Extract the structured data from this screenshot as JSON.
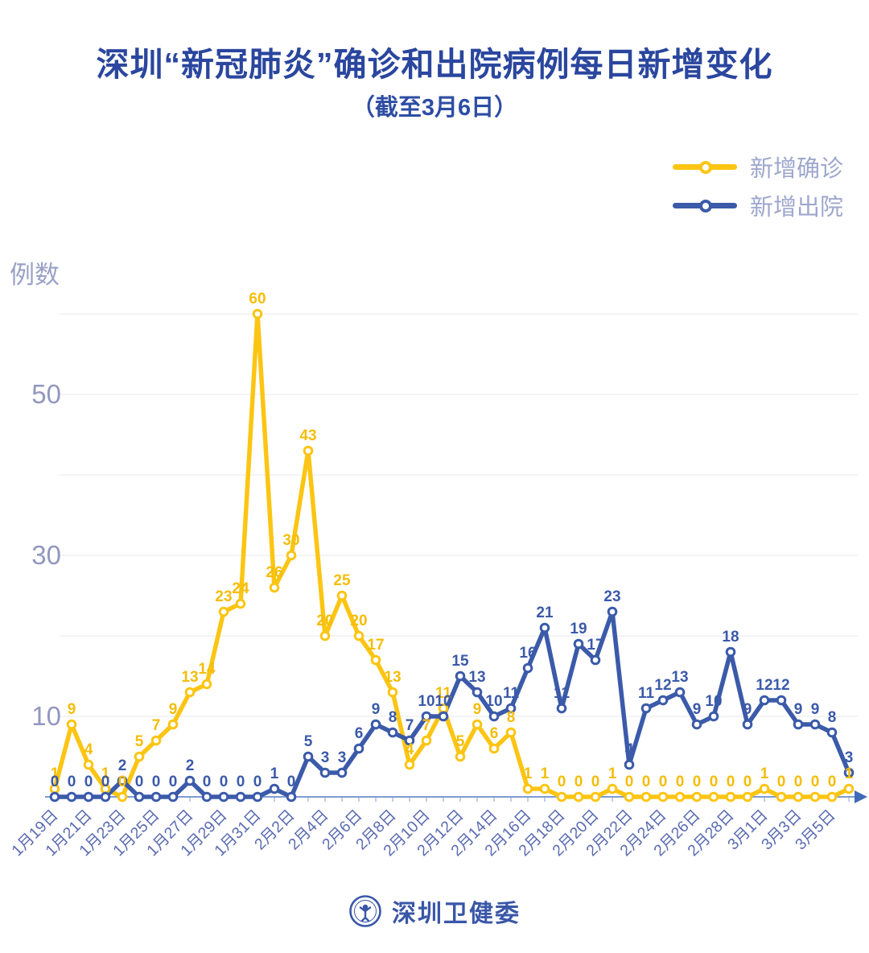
{
  "title": "深圳“新冠肺炎”确诊和出院病例每日新增变化",
  "subtitle": "（截至3月6日）",
  "legend": [
    {
      "label": "新增确诊",
      "color": "#fcc513"
    },
    {
      "label": "新增出院",
      "color": "#3b5aa9"
    }
  ],
  "y_axis": {
    "title": "例数",
    "tick_labels": [
      10,
      30,
      50
    ],
    "max": 60,
    "grid_step": 10
  },
  "footer": {
    "brand": "深圳卫健委",
    "logo": "shenzhen-health-commission-emblem"
  },
  "chart_data": {
    "type": "line",
    "x": [
      "1月19日",
      "1月20日",
      "1月21日",
      "1月22日",
      "1月23日",
      "1月24日",
      "1月25日",
      "1月26日",
      "1月27日",
      "1月28日",
      "1月29日",
      "1月30日",
      "1月31日",
      "2月1日",
      "2月2日",
      "2月3日",
      "2月4日",
      "2月5日",
      "2月6日",
      "2月7日",
      "2月8日",
      "2月9日",
      "2月10日",
      "2月11日",
      "2月12日",
      "2月13日",
      "2月14日",
      "2月15日",
      "2月16日",
      "2月17日",
      "2月18日",
      "2月19日",
      "2月20日",
      "2月21日",
      "2月22日",
      "2月23日",
      "2月24日",
      "2月25日",
      "2月26日",
      "2月27日",
      "2月28日",
      "2月29日",
      "3月1日",
      "3月2日",
      "3月3日",
      "3月4日",
      "3月5日",
      "3月6日"
    ],
    "x_label_every": 2,
    "series": [
      {
        "name": "新增确诊",
        "color": "#fcc513",
        "label_color": "#f5bd0a",
        "values": [
          1,
          9,
          4,
          1,
          0,
          5,
          7,
          9,
          13,
          14,
          23,
          24,
          60,
          26,
          30,
          43,
          20,
          25,
          20,
          17,
          13,
          4,
          7,
          11,
          5,
          9,
          6,
          8,
          1,
          1,
          0,
          0,
          0,
          1,
          0,
          0,
          0,
          0,
          0,
          0,
          0,
          0,
          1,
          0,
          0,
          0,
          0,
          1
        ]
      },
      {
        "name": "新增出院",
        "color": "#3b5aa9",
        "label_color": "#3b5aa9",
        "values": [
          0,
          0,
          0,
          0,
          2,
          0,
          0,
          0,
          2,
          0,
          0,
          0,
          0,
          1,
          0,
          5,
          3,
          3,
          6,
          9,
          8,
          7,
          10,
          10,
          15,
          13,
          10,
          11,
          16,
          21,
          11,
          19,
          17,
          23,
          4,
          11,
          12,
          13,
          9,
          10,
          18,
          9,
          12,
          12,
          9,
          9,
          8,
          3
        ]
      }
    ],
    "ylim": [
      0,
      60
    ],
    "grid": "horizontal",
    "legend_position": "top-right",
    "show_point_labels": true
  }
}
